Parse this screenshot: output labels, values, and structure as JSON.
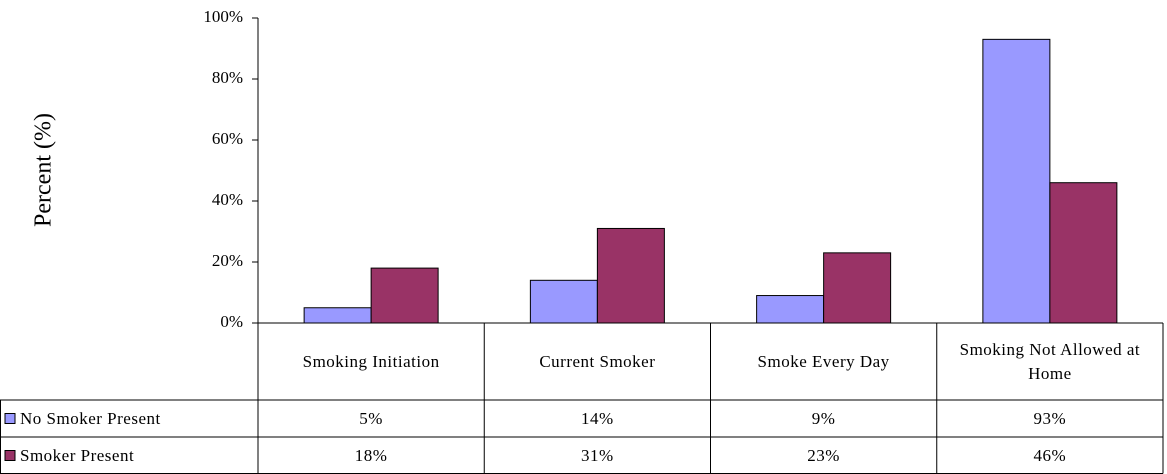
{
  "chart_data": {
    "type": "bar",
    "y_label": "Percent (%)",
    "categories": [
      "Smoking Initiation",
      "Current Smoker",
      "Smoke Every Day",
      "Smoking Not Allowed at Home"
    ],
    "series": [
      {
        "name": "No Smoker Present",
        "color": "#9999ff",
        "values": [
          5,
          14,
          9,
          93
        ],
        "value_labels": [
          "5%",
          "14%",
          "9%",
          "93%"
        ]
      },
      {
        "name": "Smoker Present",
        "color": "#993366",
        "values": [
          18,
          31,
          23,
          46
        ],
        "value_labels": [
          "18%",
          "31%",
          "23%",
          "46%"
        ]
      }
    ],
    "ylim": [
      0,
      100
    ],
    "yticks": [
      {
        "value": 0,
        "label": "0%"
      },
      {
        "value": 20,
        "label": "20%"
      },
      {
        "value": 40,
        "label": "40%"
      },
      {
        "value": 60,
        "label": "60%"
      },
      {
        "value": 80,
        "label": "80%"
      },
      {
        "value": 100,
        "label": "100%"
      }
    ],
    "grid": false
  }
}
